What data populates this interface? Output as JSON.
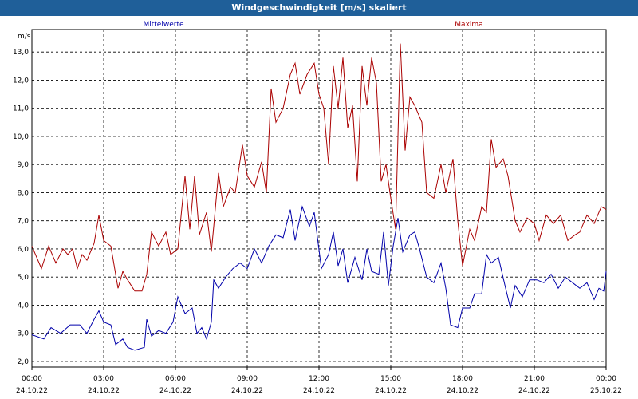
{
  "chart_data": {
    "type": "line",
    "title": "Windgeschwindigkeit [m/s] skaliert",
    "ylabel": "m/s",
    "xlabel": "",
    "ylim": [
      1.8,
      13.8
    ],
    "xlim": [
      0,
      24
    ],
    "yticks": [
      "2,0",
      "3,0",
      "4,0",
      "5,0",
      "6,0",
      "7,0",
      "8,0",
      "9,0",
      "10,0",
      "11,0",
      "12,0",
      "13,0"
    ],
    "xticks": [
      {
        "time": "00:00",
        "date": "24.10.22"
      },
      {
        "time": "03:00",
        "date": "24.10.22"
      },
      {
        "time": "06:00",
        "date": "24.10.22"
      },
      {
        "time": "09:00",
        "date": "24.10.22"
      },
      {
        "time": "12:00",
        "date": "24.10.22"
      },
      {
        "time": "15:00",
        "date": "24.10.22"
      },
      {
        "time": "18:00",
        "date": "24.10.22"
      },
      {
        "time": "21:00",
        "date": "24.10.22"
      },
      {
        "time": "00:00",
        "date": "25.10.22"
      }
    ],
    "grid": true,
    "series": [
      {
        "name": "Mittelwerte",
        "color": "#0000aa",
        "points": [
          [
            0.0,
            2.95
          ],
          [
            0.5,
            2.8
          ],
          [
            0.8,
            3.2
          ],
          [
            1.2,
            3.0
          ],
          [
            1.6,
            3.3
          ],
          [
            2.0,
            3.3
          ],
          [
            2.3,
            3.0
          ],
          [
            2.6,
            3.5
          ],
          [
            2.8,
            3.8
          ],
          [
            3.0,
            3.4
          ],
          [
            3.3,
            3.3
          ],
          [
            3.5,
            2.6
          ],
          [
            3.8,
            2.8
          ],
          [
            4.0,
            2.5
          ],
          [
            4.3,
            2.4
          ],
          [
            4.7,
            2.5
          ],
          [
            4.8,
            3.5
          ],
          [
            5.0,
            2.9
          ],
          [
            5.3,
            3.1
          ],
          [
            5.6,
            3.0
          ],
          [
            5.9,
            3.4
          ],
          [
            6.1,
            4.3
          ],
          [
            6.4,
            3.7
          ],
          [
            6.7,
            3.9
          ],
          [
            6.9,
            3.0
          ],
          [
            7.1,
            3.2
          ],
          [
            7.3,
            2.8
          ],
          [
            7.5,
            3.4
          ],
          [
            7.6,
            4.9
          ],
          [
            7.8,
            4.6
          ],
          [
            8.1,
            5.0
          ],
          [
            8.4,
            5.3
          ],
          [
            8.7,
            5.5
          ],
          [
            9.0,
            5.3
          ],
          [
            9.3,
            6.0
          ],
          [
            9.6,
            5.5
          ],
          [
            9.9,
            6.1
          ],
          [
            10.2,
            6.5
          ],
          [
            10.5,
            6.4
          ],
          [
            10.8,
            7.4
          ],
          [
            11.0,
            6.3
          ],
          [
            11.3,
            7.5
          ],
          [
            11.6,
            6.8
          ],
          [
            11.8,
            7.3
          ],
          [
            12.1,
            5.3
          ],
          [
            12.4,
            5.8
          ],
          [
            12.6,
            6.6
          ],
          [
            12.8,
            5.4
          ],
          [
            13.0,
            6.0
          ],
          [
            13.2,
            4.8
          ],
          [
            13.5,
            5.7
          ],
          [
            13.8,
            4.9
          ],
          [
            14.0,
            6.0
          ],
          [
            14.2,
            5.2
          ],
          [
            14.5,
            5.1
          ],
          [
            14.7,
            6.6
          ],
          [
            14.9,
            4.7
          ],
          [
            15.1,
            6.1
          ],
          [
            15.3,
            7.1
          ],
          [
            15.5,
            5.9
          ],
          [
            15.8,
            6.5
          ],
          [
            16.0,
            6.6
          ],
          [
            16.2,
            6.0
          ],
          [
            16.5,
            5.0
          ],
          [
            16.8,
            4.8
          ],
          [
            17.1,
            5.5
          ],
          [
            17.3,
            4.6
          ],
          [
            17.5,
            3.3
          ],
          [
            17.8,
            3.2
          ],
          [
            18.0,
            3.9
          ],
          [
            18.3,
            3.9
          ],
          [
            18.5,
            4.4
          ],
          [
            18.8,
            4.4
          ],
          [
            19.0,
            5.8
          ],
          [
            19.2,
            5.5
          ],
          [
            19.5,
            5.7
          ],
          [
            19.8,
            4.6
          ],
          [
            20.0,
            3.9
          ],
          [
            20.2,
            4.7
          ],
          [
            20.5,
            4.3
          ],
          [
            20.8,
            4.9
          ],
          [
            21.1,
            4.9
          ],
          [
            21.4,
            4.8
          ],
          [
            21.7,
            5.1
          ],
          [
            22.0,
            4.6
          ],
          [
            22.3,
            5.0
          ],
          [
            22.6,
            4.8
          ],
          [
            22.9,
            4.6
          ],
          [
            23.2,
            4.8
          ],
          [
            23.5,
            4.2
          ],
          [
            23.7,
            4.6
          ],
          [
            23.9,
            4.5
          ],
          [
            24.0,
            5.2
          ]
        ]
      },
      {
        "name": "Maxima",
        "color": "#aa0000",
        "points": [
          [
            0.0,
            6.1
          ],
          [
            0.4,
            5.3
          ],
          [
            0.7,
            6.1
          ],
          [
            1.0,
            5.5
          ],
          [
            1.3,
            6.0
          ],
          [
            1.5,
            5.8
          ],
          [
            1.7,
            6.0
          ],
          [
            1.9,
            5.3
          ],
          [
            2.1,
            5.8
          ],
          [
            2.3,
            5.6
          ],
          [
            2.6,
            6.2
          ],
          [
            2.8,
            7.2
          ],
          [
            3.0,
            6.3
          ],
          [
            3.3,
            6.1
          ],
          [
            3.6,
            4.6
          ],
          [
            3.8,
            5.2
          ],
          [
            4.0,
            4.9
          ],
          [
            4.3,
            4.5
          ],
          [
            4.6,
            4.5
          ],
          [
            4.8,
            5.1
          ],
          [
            5.0,
            6.6
          ],
          [
            5.3,
            6.1
          ],
          [
            5.6,
            6.6
          ],
          [
            5.8,
            5.8
          ],
          [
            6.1,
            6.0
          ],
          [
            6.4,
            8.6
          ],
          [
            6.6,
            6.7
          ],
          [
            6.8,
            8.6
          ],
          [
            7.0,
            6.5
          ],
          [
            7.3,
            7.3
          ],
          [
            7.5,
            5.9
          ],
          [
            7.6,
            6.8
          ],
          [
            7.8,
            8.7
          ],
          [
            8.0,
            7.5
          ],
          [
            8.3,
            8.2
          ],
          [
            8.5,
            8.0
          ],
          [
            8.8,
            9.7
          ],
          [
            9.0,
            8.6
          ],
          [
            9.3,
            8.2
          ],
          [
            9.6,
            9.1
          ],
          [
            9.8,
            8.0
          ],
          [
            10.0,
            11.7
          ],
          [
            10.2,
            10.5
          ],
          [
            10.5,
            11.0
          ],
          [
            10.8,
            12.2
          ],
          [
            11.0,
            12.6
          ],
          [
            11.2,
            11.5
          ],
          [
            11.5,
            12.2
          ],
          [
            11.8,
            12.6
          ],
          [
            12.0,
            11.5
          ],
          [
            12.2,
            11.0
          ],
          [
            12.4,
            9.0
          ],
          [
            12.6,
            12.5
          ],
          [
            12.8,
            11.0
          ],
          [
            13.0,
            12.8
          ],
          [
            13.2,
            10.3
          ],
          [
            13.4,
            11.1
          ],
          [
            13.6,
            8.4
          ],
          [
            13.8,
            12.5
          ],
          [
            14.0,
            11.1
          ],
          [
            14.2,
            12.8
          ],
          [
            14.4,
            11.9
          ],
          [
            14.6,
            8.4
          ],
          [
            14.8,
            9.0
          ],
          [
            15.0,
            7.8
          ],
          [
            15.2,
            6.7
          ],
          [
            15.4,
            13.3
          ],
          [
            15.6,
            9.5
          ],
          [
            15.8,
            11.4
          ],
          [
            16.0,
            11.1
          ],
          [
            16.3,
            10.5
          ],
          [
            16.5,
            8.0
          ],
          [
            16.8,
            7.8
          ],
          [
            17.1,
            9.0
          ],
          [
            17.3,
            8.0
          ],
          [
            17.6,
            9.2
          ],
          [
            17.8,
            7.0
          ],
          [
            18.0,
            5.4
          ],
          [
            18.3,
            6.7
          ],
          [
            18.5,
            6.3
          ],
          [
            18.8,
            7.5
          ],
          [
            19.0,
            7.3
          ],
          [
            19.2,
            9.9
          ],
          [
            19.4,
            8.9
          ],
          [
            19.7,
            9.2
          ],
          [
            19.9,
            8.6
          ],
          [
            20.2,
            7.0
          ],
          [
            20.4,
            6.6
          ],
          [
            20.7,
            7.1
          ],
          [
            21.0,
            6.9
          ],
          [
            21.2,
            6.3
          ],
          [
            21.5,
            7.2
          ],
          [
            21.8,
            6.9
          ],
          [
            22.1,
            7.2
          ],
          [
            22.4,
            6.3
          ],
          [
            22.7,
            6.5
          ],
          [
            22.9,
            6.6
          ],
          [
            23.2,
            7.2
          ],
          [
            23.5,
            6.9
          ],
          [
            23.8,
            7.5
          ],
          [
            24.0,
            7.4
          ]
        ]
      }
    ]
  }
}
